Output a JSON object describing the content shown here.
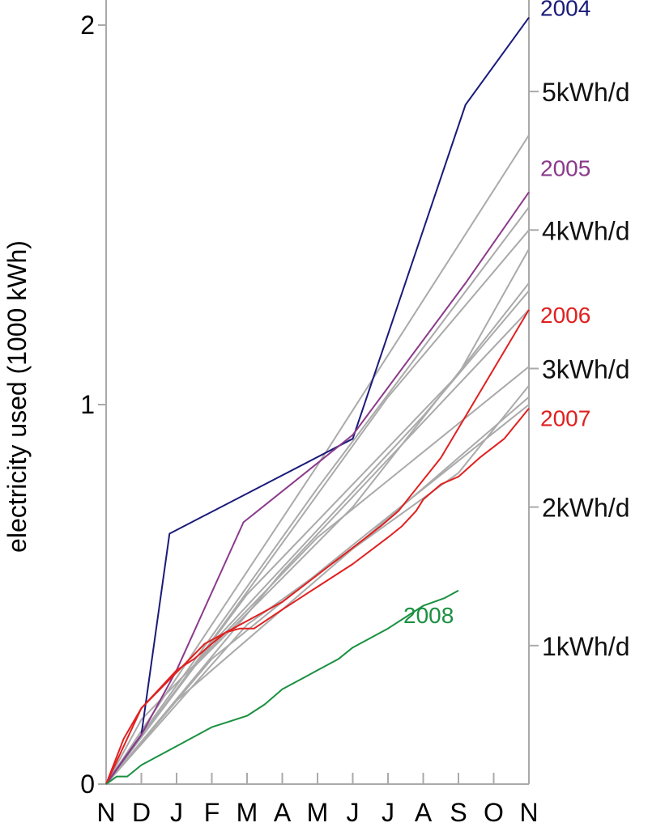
{
  "chart_data": {
    "type": "line",
    "ylabel": "electricity used (1000 kWh)",
    "xlabel": "",
    "x_categories": [
      "N",
      "D",
      "J",
      "F",
      "M",
      "A",
      "M",
      "J",
      "J",
      "A",
      "S",
      "O",
      "N"
    ],
    "y_ticks": [
      "0",
      "1",
      "2"
    ],
    "ylim": [
      0,
      2.1
    ],
    "grid": false,
    "rate_labels": [
      {
        "label": "1kWh/d",
        "value": 0.365
      },
      {
        "label": "2kWh/d",
        "value": 0.73
      },
      {
        "label": "3kWh/d",
        "value": 1.095
      },
      {
        "label": "4kWh/d",
        "value": 1.46
      },
      {
        "label": "5kWh/d",
        "value": 1.825
      }
    ],
    "colors": {
      "background_years": "#aaaaaa",
      "2004": "#1a1a7a",
      "2005": "#8b3a8b",
      "2006": "#e02020",
      "2007": "#e02020",
      "2008": "#1a9040",
      "axis": "#aaaaaa"
    },
    "series": [
      {
        "name": "2004",
        "label_value": 2.02,
        "points": [
          [
            0,
            0
          ],
          [
            1,
            0.13
          ],
          [
            1.8,
            0.66
          ],
          [
            7,
            0.91
          ],
          [
            10.2,
            1.79
          ],
          [
            12,
            2.02
          ]
        ]
      },
      {
        "name": "2005",
        "label_value": 1.56,
        "points": [
          [
            0,
            0
          ],
          [
            1,
            0.13
          ],
          [
            2,
            0.3
          ],
          [
            3.9,
            0.69
          ],
          [
            7,
            0.92
          ],
          [
            10.2,
            1.32
          ],
          [
            12,
            1.56
          ]
        ]
      },
      {
        "name": "2006",
        "label_value": 1.25,
        "points": [
          [
            0,
            0
          ],
          [
            1,
            0.2
          ],
          [
            2.8,
            0.37
          ],
          [
            5,
            0.48
          ],
          [
            7.8,
            0.68
          ],
          [
            8.3,
            0.72
          ],
          [
            9.5,
            0.86
          ],
          [
            12,
            1.25
          ]
        ]
      },
      {
        "name": "2007",
        "label_value": 0.99,
        "points": [
          [
            0,
            0
          ],
          [
            0.5,
            0.12
          ],
          [
            1,
            0.2
          ],
          [
            1.5,
            0.25
          ],
          [
            2,
            0.3
          ],
          [
            2.5,
            0.33
          ],
          [
            3,
            0.37
          ],
          [
            3.4,
            0.4
          ],
          [
            3.8,
            0.41
          ],
          [
            4.2,
            0.41
          ],
          [
            5,
            0.46
          ],
          [
            6,
            0.52
          ],
          [
            7,
            0.58
          ],
          [
            8,
            0.65
          ],
          [
            8.4,
            0.68
          ],
          [
            8.8,
            0.72
          ],
          [
            9,
            0.75
          ],
          [
            9.5,
            0.79
          ],
          [
            10,
            0.81
          ],
          [
            10.6,
            0.86
          ],
          [
            11.3,
            0.91
          ],
          [
            12,
            0.99
          ]
        ]
      },
      {
        "name": "2008",
        "label_value": 0.5,
        "points": [
          [
            0,
            0
          ],
          [
            0.3,
            0.02
          ],
          [
            0.6,
            0.02
          ],
          [
            1,
            0.05
          ],
          [
            2,
            0.1
          ],
          [
            3,
            0.15
          ],
          [
            4,
            0.18
          ],
          [
            4.5,
            0.21
          ],
          [
            5,
            0.25
          ],
          [
            6,
            0.3
          ],
          [
            6.6,
            0.33
          ],
          [
            7,
            0.36
          ],
          [
            8,
            0.41
          ],
          [
            8.5,
            0.44
          ],
          [
            9,
            0.47
          ],
          [
            9.3,
            0.48
          ],
          [
            9.6,
            0.49
          ],
          [
            10,
            0.51
          ]
        ]
      }
    ],
    "background_series": [
      {
        "points": [
          [
            0,
            0
          ],
          [
            6,
            0.84
          ],
          [
            12,
            1.71
          ]
        ]
      },
      {
        "points": [
          [
            0,
            0
          ],
          [
            6,
            0.78
          ],
          [
            12,
            1.52
          ]
        ]
      },
      {
        "points": [
          [
            0,
            0
          ],
          [
            2,
            0.25
          ],
          [
            8,
            1.02
          ],
          [
            12,
            1.46
          ]
        ]
      },
      {
        "points": [
          [
            0,
            0
          ],
          [
            4,
            0.5
          ],
          [
            10,
            1.08
          ],
          [
            12,
            1.41
          ]
        ]
      },
      {
        "points": [
          [
            0,
            0
          ],
          [
            2.4,
            0.3
          ],
          [
            7,
            0.73
          ],
          [
            12,
            1.32
          ]
        ]
      },
      {
        "points": [
          [
            0,
            0
          ],
          [
            3,
            0.37
          ],
          [
            9,
            0.97
          ],
          [
            12,
            1.3
          ]
        ]
      },
      {
        "points": [
          [
            0,
            0
          ],
          [
            5,
            0.56
          ],
          [
            12,
            1.25
          ]
        ]
      },
      {
        "points": [
          [
            0,
            0
          ],
          [
            1,
            0.17
          ],
          [
            6,
            0.65
          ],
          [
            12,
            1.1
          ]
        ]
      },
      {
        "points": [
          [
            0,
            0
          ],
          [
            4,
            0.42
          ],
          [
            10,
            0.82
          ],
          [
            12,
            1.05
          ]
        ]
      },
      {
        "points": [
          [
            0,
            0
          ],
          [
            2,
            0.22
          ],
          [
            8,
            0.7
          ],
          [
            12,
            1.02
          ]
        ]
      },
      {
        "points": [
          [
            0,
            0
          ],
          [
            3,
            0.33
          ],
          [
            7,
            0.63
          ],
          [
            12,
            1.0
          ]
        ]
      }
    ]
  }
}
